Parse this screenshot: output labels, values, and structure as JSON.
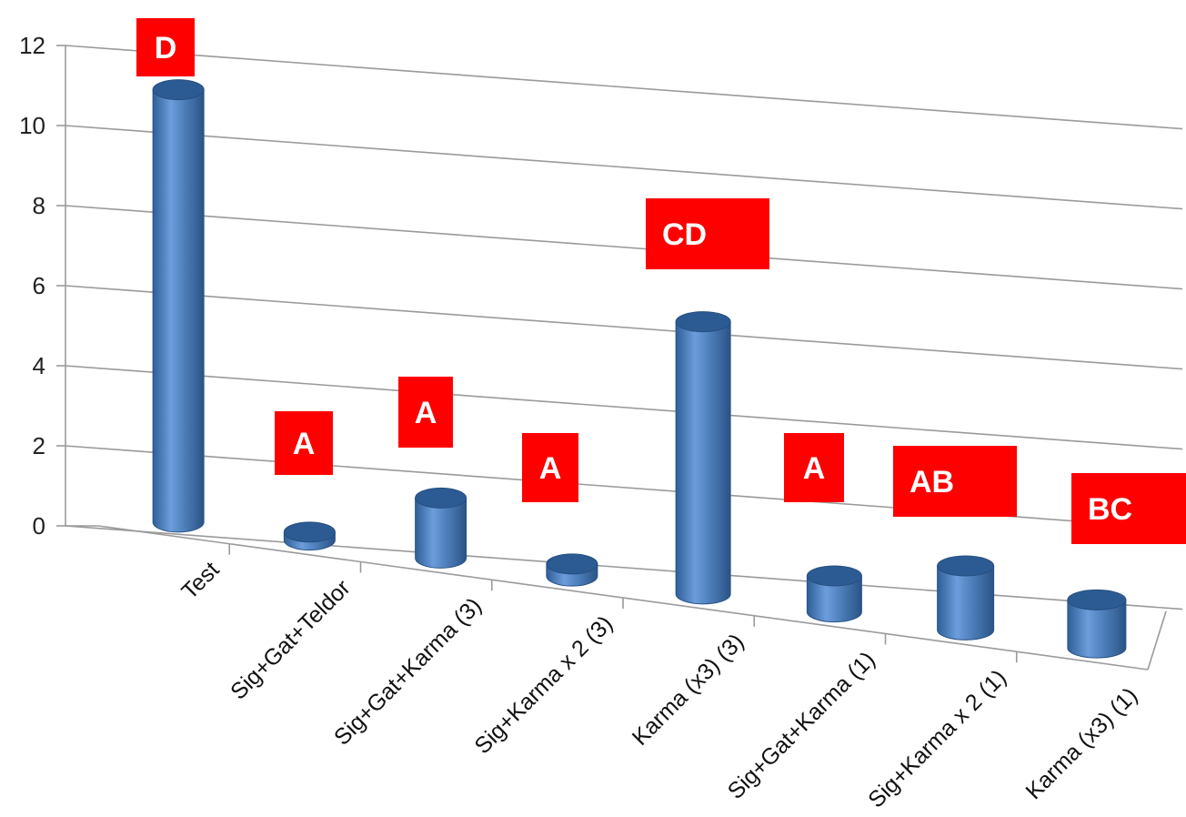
{
  "chart_data": {
    "type": "bar",
    "style": "3d-cylinder",
    "title": "",
    "xlabel": "",
    "ylabel": "",
    "ylim": [
      0,
      12
    ],
    "yticks": [
      0,
      2,
      4,
      6,
      8,
      10,
      12
    ],
    "grid": true,
    "legend": "none",
    "bar_color": "#4f81bd",
    "annotation_color": "#ff0000",
    "categories": [
      "Test",
      "Sig+Gat+Teldor",
      "Sig+Gat+Karma (3)",
      "Sig+Karma x 2 (3)",
      "Karma (x3) (3)",
      "Sig+Gat+Karma (1)",
      "Sig+Karma x 2 (1)",
      "Karma (x3) (1)"
    ],
    "values": [
      10.8,
      0.2,
      1.5,
      0.3,
      6.8,
      0.9,
      1.6,
      1.2
    ],
    "annotations": [
      "D",
      "A",
      "A",
      "A",
      "CD",
      "A",
      "AB",
      "BC"
    ]
  }
}
